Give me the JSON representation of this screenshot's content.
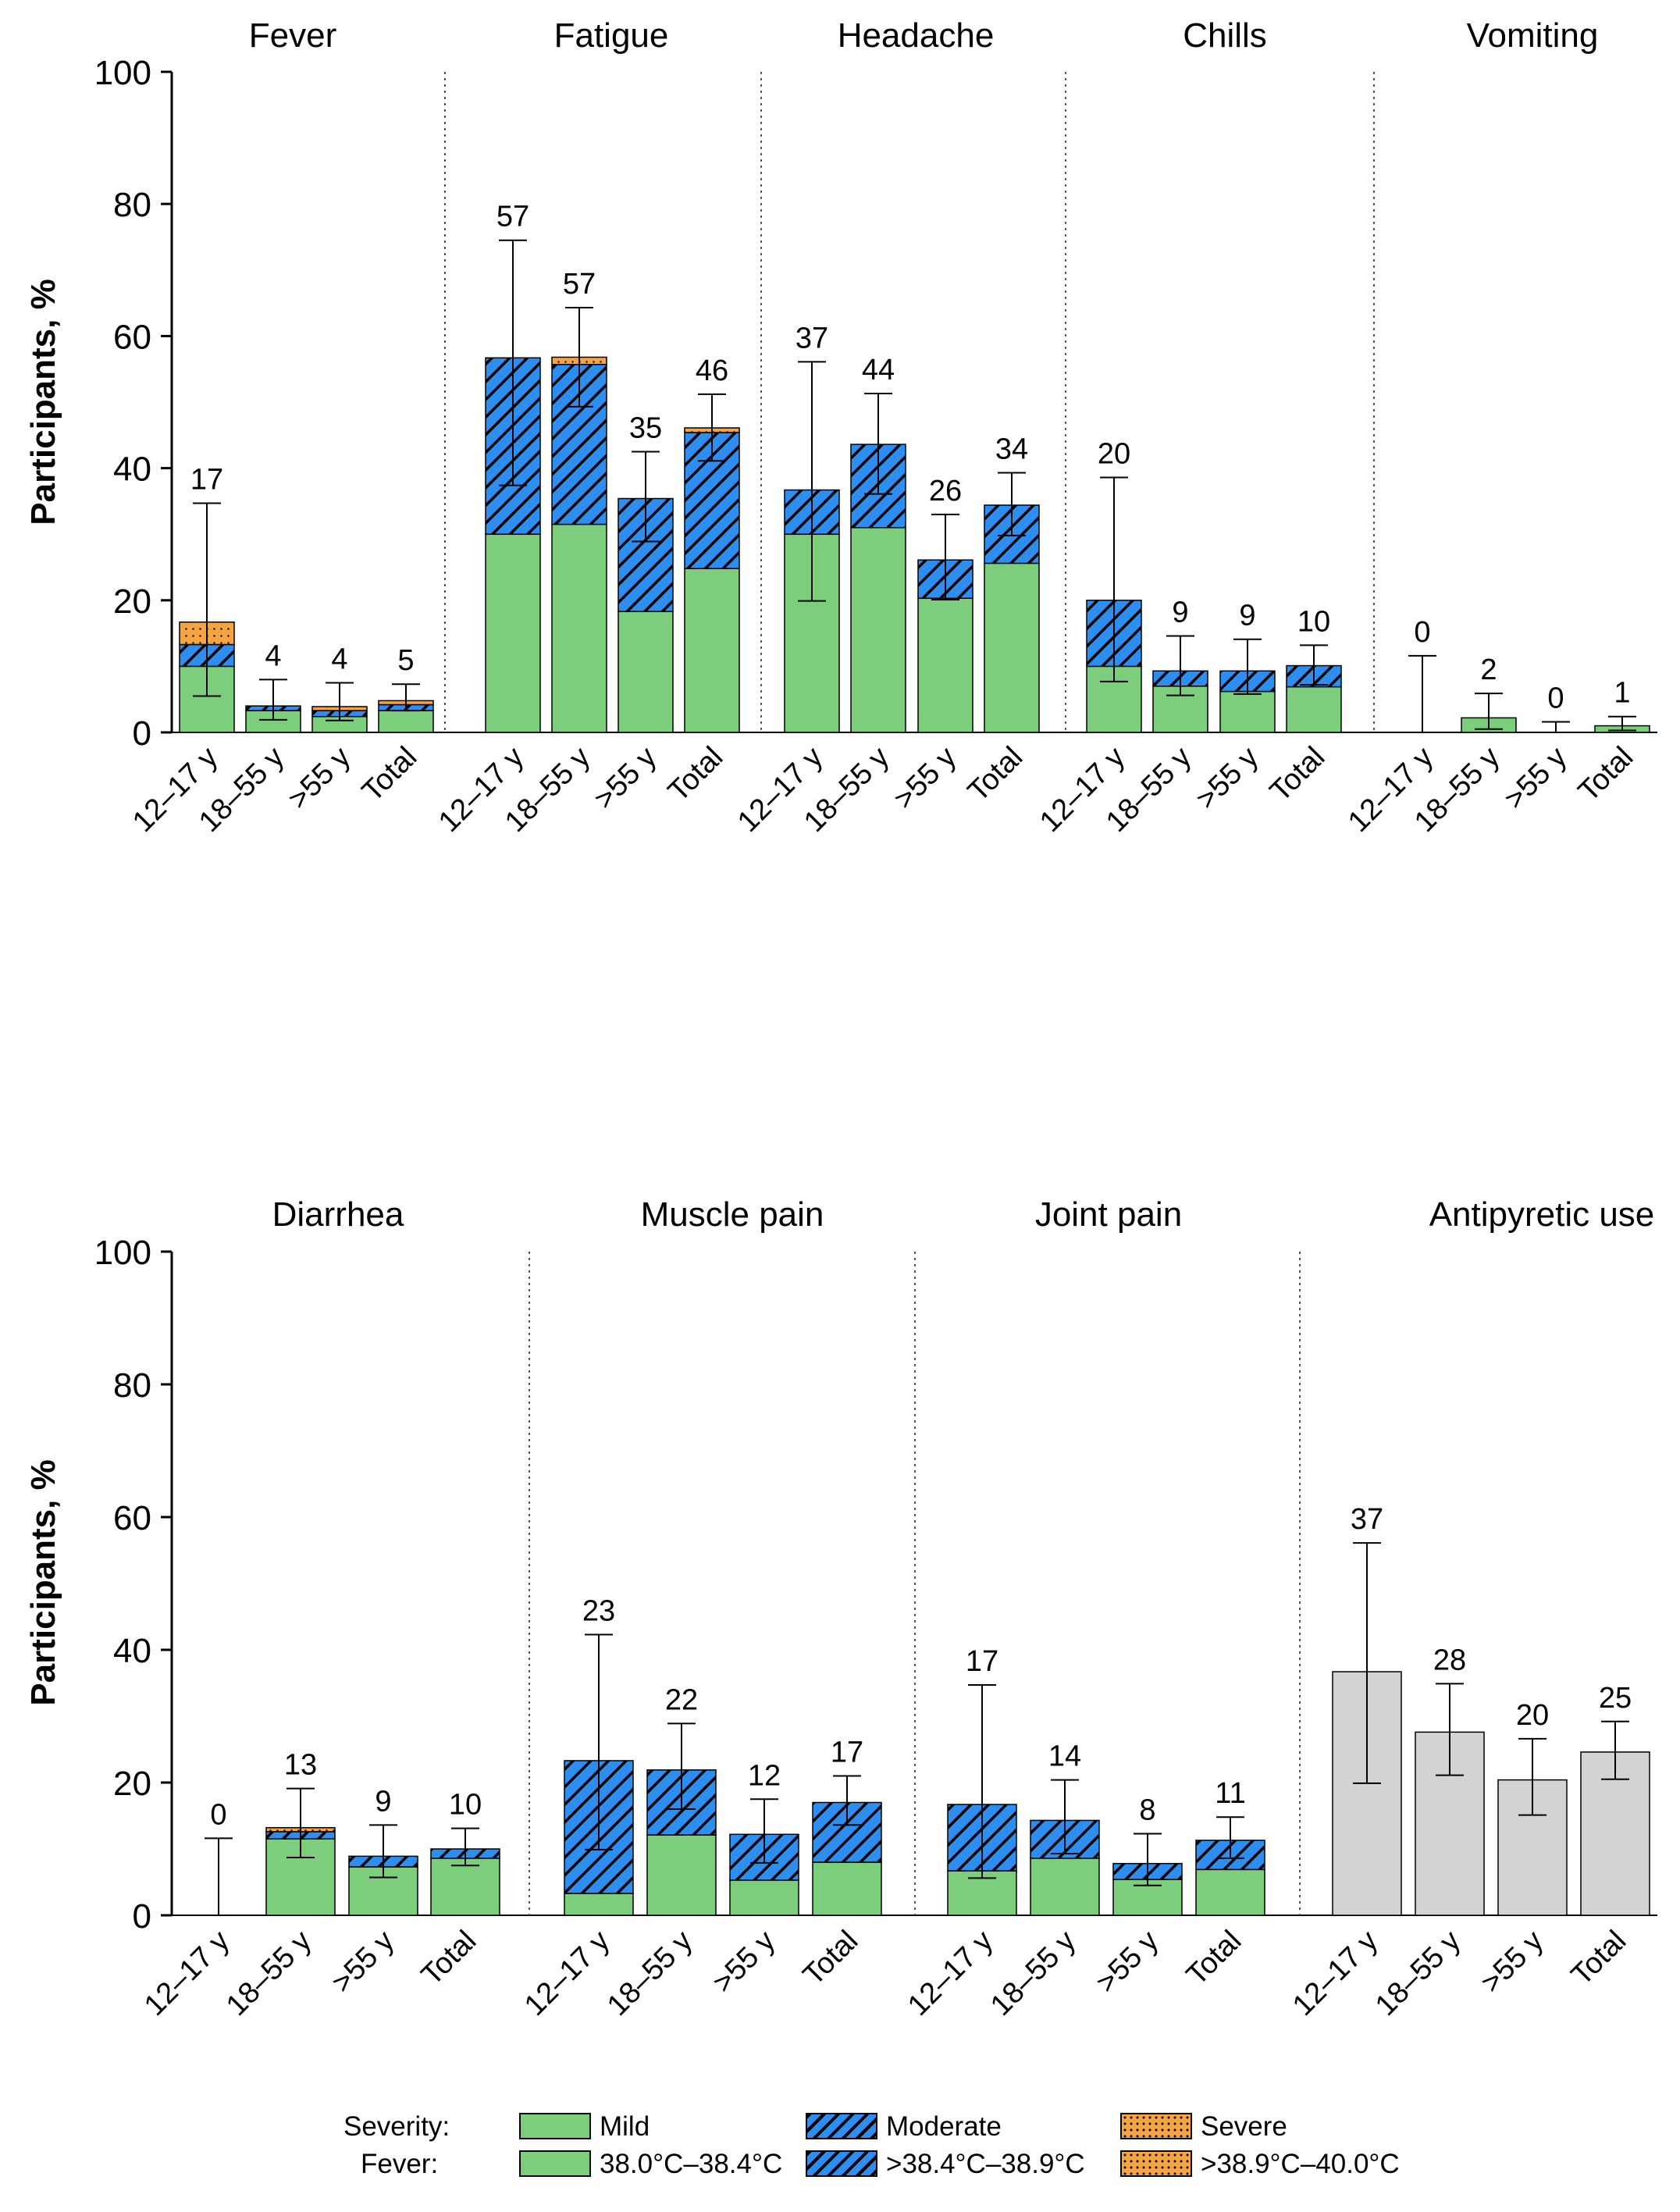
{
  "colors": {
    "mild": "#7ccd7c",
    "moderate": "#2e8ef0",
    "severe": "#f5a441",
    "antipyretic": "#d3d3d3",
    "axis": "#000000",
    "divider": "#555555"
  },
  "legend": {
    "severity_label": "Severity:",
    "fever_label": "Fever:",
    "items": [
      {
        "key": "mild",
        "severity": "Mild",
        "fever": "38.0°C–38.4°C"
      },
      {
        "key": "moderate",
        "severity": "Moderate",
        "fever": ">38.4°C–38.9°C"
      },
      {
        "key": "severe",
        "severity": "Severe",
        "fever": ">38.9°C–40.0°C"
      }
    ]
  },
  "chart_data": [
    {
      "type": "bar",
      "stacked": true,
      "ylabel": "Participants, %",
      "ylim": [
        0,
        100
      ],
      "yticks": [
        0,
        20,
        40,
        60,
        80,
        100
      ],
      "categories": [
        "12–17 y",
        "18–55 y",
        ">55 y",
        "Total"
      ],
      "groups": [
        {
          "title": "Fever",
          "bars": [
            {
              "mild": 10,
              "moderate": 3.3,
              "severe": 3.4,
              "label": "17",
              "err": [
                5.5,
                34.7
              ]
            },
            {
              "mild": 3.3,
              "moderate": 0.7,
              "severe": 0,
              "label": "4",
              "err": [
                1.9,
                8.0
              ]
            },
            {
              "mild": 2.4,
              "moderate": 0.9,
              "severe": 0.6,
              "label": "4",
              "err": [
                1.8,
                7.5
              ]
            },
            {
              "mild": 3.3,
              "moderate": 0.9,
              "severe": 0.6,
              "label": "5",
              "err": [
                3.3,
                7.3
              ]
            }
          ]
        },
        {
          "title": "Fatigue",
          "bars": [
            {
              "mild": 30,
              "moderate": 26.7,
              "severe": 0,
              "label": "57",
              "err": [
                37.4,
                74.5
              ]
            },
            {
              "mild": 31.5,
              "moderate": 24.2,
              "severe": 1.1,
              "label": "57",
              "err": [
                49.3,
                64.3
              ]
            },
            {
              "mild": 18.3,
              "moderate": 17.1,
              "severe": 0,
              "label": "35",
              "err": [
                28.9,
                42.5
              ]
            },
            {
              "mild": 24.8,
              "moderate": 20.6,
              "severe": 0.7,
              "label": "46",
              "err": [
                41.1,
                51.2
              ]
            }
          ]
        },
        {
          "title": "Headache",
          "bars": [
            {
              "mild": 30,
              "moderate": 6.7,
              "severe": 0,
              "label": "37",
              "err": [
                19.9,
                56.1
              ]
            },
            {
              "mild": 31,
              "moderate": 12.6,
              "severe": 0,
              "label": "44",
              "err": [
                36.1,
                51.3
              ]
            },
            {
              "mild": 20.3,
              "moderate": 5.8,
              "severe": 0,
              "label": "26",
              "err": [
                20.1,
                33.0
              ]
            },
            {
              "mild": 25.6,
              "moderate": 8.8,
              "severe": 0,
              "label": "34",
              "err": [
                29.8,
                39.3
              ]
            }
          ]
        },
        {
          "title": "Chills",
          "bars": [
            {
              "mild": 10,
              "moderate": 10,
              "severe": 0,
              "label": "20",
              "err": [
                7.7,
                38.6
              ]
            },
            {
              "mild": 7,
              "moderate": 2.3,
              "severe": 0,
              "label": "9",
              "err": [
                5.6,
                14.6
              ]
            },
            {
              "mild": 6.2,
              "moderate": 3.1,
              "severe": 0,
              "label": "9",
              "err": [
                5.8,
                14.1
              ]
            },
            {
              "mild": 6.9,
              "moderate": 3.2,
              "severe": 0,
              "label": "10",
              "err": [
                7.2,
                13.2
              ]
            }
          ]
        },
        {
          "title": "Vomiting",
          "bars": [
            {
              "mild": 0,
              "moderate": 0,
              "severe": 0,
              "label": "0",
              "err": [
                0,
                11.6
              ]
            },
            {
              "mild": 2.2,
              "moderate": 0,
              "severe": 0,
              "label": "2",
              "err": [
                0.5,
                5.9
              ]
            },
            {
              "mild": 0,
              "moderate": 0,
              "severe": 0,
              "label": "0",
              "err": [
                0,
                1.6
              ]
            },
            {
              "mild": 1,
              "moderate": 0,
              "severe": 0,
              "label": "1",
              "err": [
                0.3,
                2.4
              ]
            }
          ]
        }
      ]
    },
    {
      "type": "bar",
      "stacked": true,
      "ylabel": "Participants, %",
      "ylim": [
        0,
        100
      ],
      "yticks": [
        0,
        20,
        40,
        60,
        80,
        100
      ],
      "categories": [
        "12–17 y",
        "18–55 y",
        ">55 y",
        "Total"
      ],
      "groups": [
        {
          "title": "Diarrhea",
          "bars": [
            {
              "mild": 0,
              "moderate": 0,
              "severe": 0,
              "label": "0",
              "err": [
                0,
                11.6
              ]
            },
            {
              "mild": 11.5,
              "moderate": 1.1,
              "severe": 0.6,
              "label": "13",
              "err": [
                8.7,
                19.1
              ]
            },
            {
              "mild": 7.3,
              "moderate": 1.6,
              "severe": 0,
              "label": "9",
              "err": [
                5.7,
                13.6
              ]
            },
            {
              "mild": 8.6,
              "moderate": 1.4,
              "severe": 0,
              "label": "10",
              "err": [
                7.5,
                13.1
              ]
            }
          ]
        },
        {
          "title": "Muscle pain",
          "bars": [
            {
              "mild": 3.3,
              "moderate": 20,
              "severe": 0,
              "label": "23",
              "err": [
                9.9,
                42.3
              ]
            },
            {
              "mild": 12.1,
              "moderate": 9.8,
              "severe": 0,
              "label": "22",
              "err": [
                16.0,
                28.9
              ]
            },
            {
              "mild": 5.3,
              "moderate": 6.9,
              "severe": 0,
              "label": "12",
              "err": [
                7.9,
                17.5
              ]
            },
            {
              "mild": 8,
              "moderate": 9,
              "severe": 0,
              "label": "17",
              "err": [
                13.6,
                21.0
              ]
            }
          ]
        },
        {
          "title": "Joint pain",
          "bars": [
            {
              "mild": 6.7,
              "moderate": 10,
              "severe": 0,
              "label": "17",
              "err": [
                5.6,
                34.7
              ]
            },
            {
              "mild": 8.6,
              "moderate": 5.7,
              "severe": 0,
              "label": "14",
              "err": [
                9.3,
                20.4
              ]
            },
            {
              "mild": 5.4,
              "moderate": 2.4,
              "severe": 0,
              "label": "8",
              "err": [
                4.5,
                12.3
              ]
            },
            {
              "mild": 6.9,
              "moderate": 4.4,
              "severe": 0,
              "label": "11",
              "err": [
                8.6,
                14.8
              ]
            }
          ]
        },
        {
          "title": "Antipyretic use",
          "single": true,
          "bars": [
            {
              "mild": 36.7,
              "moderate": 0,
              "severe": 0,
              "label": "37",
              "err": [
                19.9,
                56.1
              ]
            },
            {
              "mild": 27.6,
              "moderate": 0,
              "severe": 0,
              "label": "28",
              "err": [
                21.1,
                34.9
              ]
            },
            {
              "mild": 20.4,
              "moderate": 0,
              "severe": 0,
              "label": "20",
              "err": [
                15.1,
                26.6
              ]
            },
            {
              "mild": 24.6,
              "moderate": 0,
              "severe": 0,
              "label": "25",
              "err": [
                20.5,
                29.2
              ]
            }
          ]
        }
      ]
    }
  ]
}
